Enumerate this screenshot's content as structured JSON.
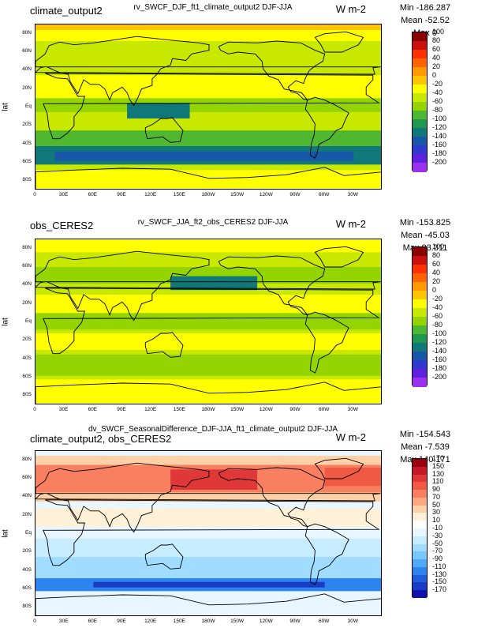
{
  "panels": [
    {
      "name": "climate_output2",
      "center_title": "rv_SWCF_DJF_ft1_climate_output2  DJF-JJA",
      "units": "W m-2",
      "stats": {
        "min": "Min -186.287",
        "mean": "Mean -52.52",
        "max": "Max 0"
      },
      "colorbar": {
        "labels": [
          "100",
          "80",
          "60",
          "40",
          "20",
          "0",
          "-20",
          "-40",
          "-60",
          "-80",
          "-100",
          "-120",
          "-140",
          "-160",
          "-180",
          "-200"
        ],
        "colors": [
          "#8b0000",
          "#cc1010",
          "#ff3000",
          "#ff6400",
          "#ff9900",
          "#ffc400",
          "#ffff00",
          "#c8e800",
          "#94d400",
          "#50b830",
          "#209850",
          "#107878",
          "#1858a8",
          "#3038d0",
          "#6020e0",
          "#9a30f0"
        ]
      },
      "theme": "clim"
    },
    {
      "name": "obs_CERES2",
      "center_title": "rv_SWCF_JJA_ft2_obs_CERES2  DJF-JJA",
      "units": "W m-2",
      "stats": {
        "min": "Min -153.825",
        "mean": "Mean -45.03",
        "max": "Max 83.311"
      },
      "colorbar": {
        "labels": [
          "100",
          "80",
          "60",
          "40",
          "20",
          "0",
          "-20",
          "-40",
          "-60",
          "-80",
          "-100",
          "-120",
          "-140",
          "-160",
          "-180",
          "-200"
        ],
        "colors": [
          "#8b0000",
          "#cc1010",
          "#ff3000",
          "#ff6400",
          "#ff9900",
          "#ffc400",
          "#ffff00",
          "#c8e800",
          "#94d400",
          "#50b830",
          "#209850",
          "#107878",
          "#1858a8",
          "#3038d0",
          "#6020e0",
          "#9a30f0"
        ]
      },
      "theme": "obs"
    },
    {
      "name": "climate_output2, obs_CERES2",
      "center_title": "dv_SWCF_SeasonalDifference_DJF-JJA_ft1_climate_output2  DJF-JJA",
      "units": "W m-2",
      "stats": {
        "min": "Min -154.543",
        "mean": "Mean -7.539",
        "max": "Max 140.171"
      },
      "colorbar": {
        "labels": [
          "170",
          "150",
          "130",
          "110",
          "90",
          "70",
          "50",
          "30",
          "10",
          "-10",
          "-30",
          "-50",
          "-70",
          "-90",
          "-110",
          "-130",
          "-150",
          "-170"
        ],
        "colors": [
          "#9a0010",
          "#c81828",
          "#e03838",
          "#f05a44",
          "#f88060",
          "#fca880",
          "#fdd0a8",
          "#fff0d8",
          "#ffffff",
          "#e8f6ff",
          "#c8ecff",
          "#a0dcff",
          "#78c8ff",
          "#50a8f8",
          "#2e84ee",
          "#1e5edc",
          "#1a3cc4",
          "#1010b0"
        ]
      },
      "theme": "diff"
    }
  ],
  "y_axis_label": "lat",
  "lat_ticks": [
    "80N",
    "60N",
    "40N",
    "20N",
    "Eq",
    "20S",
    "40S",
    "60S",
    "80S"
  ],
  "lon_ticks": [
    "0",
    "30E",
    "60E",
    "90E",
    "120E",
    "150E",
    "180W",
    "150W",
    "120W",
    "90W",
    "60W",
    "30W"
  ]
}
